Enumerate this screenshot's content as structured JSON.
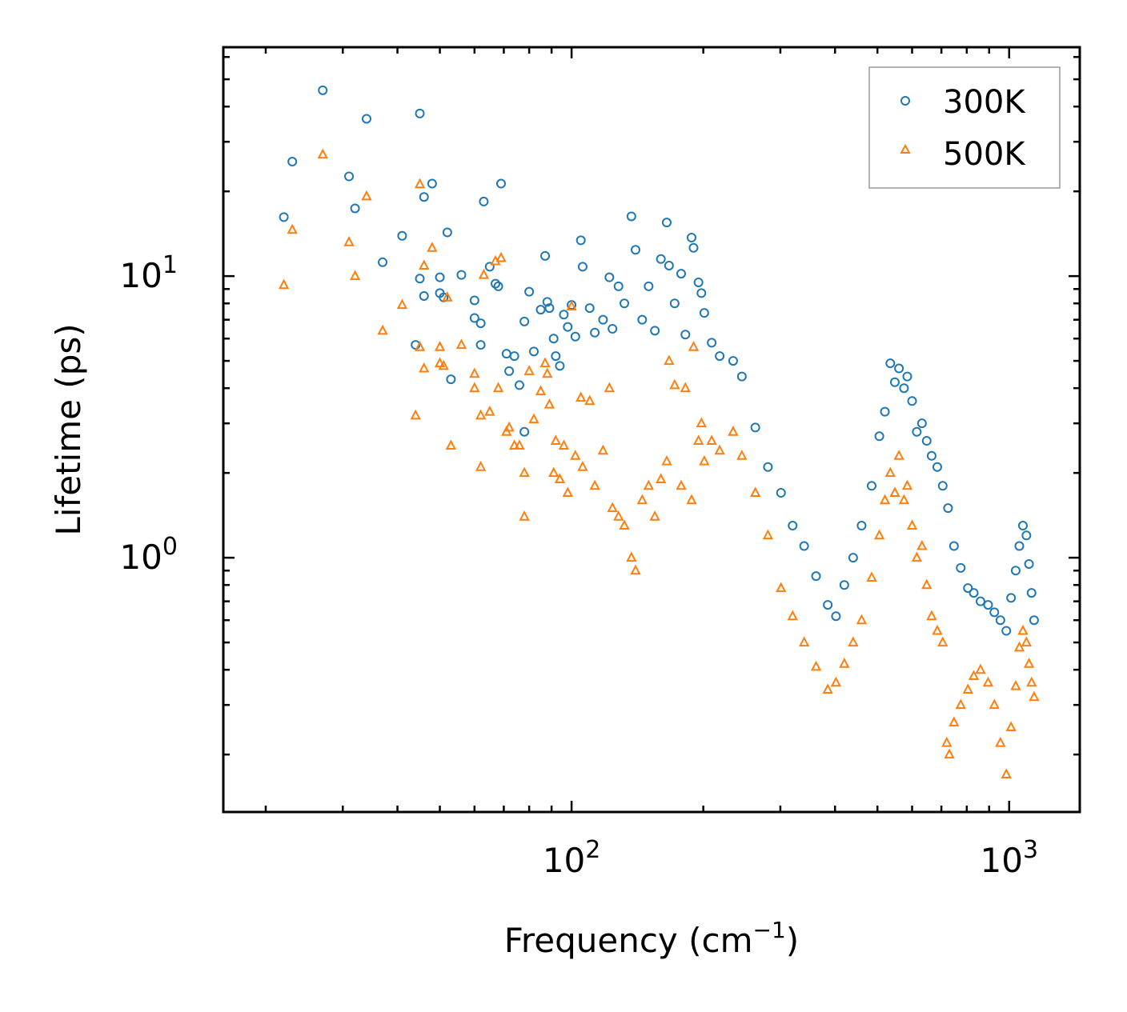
{
  "chart_data": {
    "type": "scatter",
    "xlabel": "Frequency (cm",
    "xlabel_sup": "−1",
    "xlabel_close": ")",
    "ylabel": "Lifetime (ps)",
    "xscale": "log",
    "yscale": "log",
    "xlim": [
      16,
      1450
    ],
    "ylim": [
      0.125,
      65
    ],
    "xticks": [
      {
        "base": "10",
        "exp": "2",
        "value": 100
      },
      {
        "base": "10",
        "exp": "3",
        "value": 1000
      }
    ],
    "yticks": [
      {
        "base": "10",
        "exp": "0",
        "value": 1
      },
      {
        "base": "10",
        "exp": "1",
        "value": 10
      }
    ],
    "legend": {
      "position": "top-right",
      "entries": [
        {
          "label": "300K",
          "marker": "circle",
          "color": "#1f77b4"
        },
        {
          "label": "500K",
          "marker": "triangle",
          "color": "#ff7f0e"
        }
      ]
    },
    "series": [
      {
        "name": "300K",
        "marker": "circle",
        "color": "#1f77b4",
        "points": [
          [
            22,
            16.2
          ],
          [
            23,
            25.5
          ],
          [
            27,
            45.7
          ],
          [
            31,
            22.6
          ],
          [
            32,
            17.4
          ],
          [
            34,
            36.2
          ],
          [
            37,
            11.2
          ],
          [
            41,
            13.9
          ],
          [
            44,
            5.7
          ],
          [
            45,
            37.8
          ],
          [
            45,
            9.8
          ],
          [
            46,
            8.5
          ],
          [
            46,
            19.1
          ],
          [
            48,
            21.3
          ],
          [
            50,
            9.9
          ],
          [
            50,
            8.7
          ],
          [
            51,
            8.4
          ],
          [
            52,
            14.3
          ],
          [
            53,
            4.3
          ],
          [
            56,
            10.1
          ],
          [
            60,
            8.2
          ],
          [
            60,
            7.1
          ],
          [
            62,
            6.8
          ],
          [
            62,
            5.7
          ],
          [
            63,
            18.4
          ],
          [
            65,
            10.8
          ],
          [
            67,
            9.4
          ],
          [
            68,
            9.2
          ],
          [
            69,
            21.3
          ],
          [
            71,
            5.3
          ],
          [
            72,
            4.6
          ],
          [
            74,
            5.2
          ],
          [
            76,
            4.1
          ],
          [
            78,
            6.9
          ],
          [
            78,
            2.8
          ],
          [
            80,
            8.8
          ],
          [
            82,
            5.4
          ],
          [
            85,
            7.6
          ],
          [
            87,
            11.8
          ],
          [
            88,
            8.1
          ],
          [
            89,
            7.7
          ],
          [
            91,
            6.0
          ],
          [
            92,
            5.2
          ],
          [
            94,
            4.8
          ],
          [
            96,
            7.3
          ],
          [
            98,
            6.6
          ],
          [
            100,
            7.9
          ],
          [
            102,
            6.1
          ],
          [
            105,
            13.4
          ],
          [
            106,
            10.8
          ],
          [
            110,
            7.7
          ],
          [
            113,
            6.3
          ],
          [
            118,
            7.0
          ],
          [
            122,
            9.9
          ],
          [
            124,
            6.5
          ],
          [
            128,
            9.2
          ],
          [
            132,
            8.0
          ],
          [
            137,
            16.3
          ],
          [
            140,
            12.4
          ],
          [
            145,
            7.0
          ],
          [
            150,
            9.2
          ],
          [
            155,
            6.4
          ],
          [
            160,
            11.5
          ],
          [
            165,
            15.5
          ],
          [
            167,
            10.9
          ],
          [
            172,
            8.0
          ],
          [
            178,
            10.2
          ],
          [
            182,
            6.2
          ],
          [
            188,
            13.7
          ],
          [
            190,
            12.6
          ],
          [
            195,
            9.5
          ],
          [
            198,
            8.7
          ],
          [
            201,
            7.4
          ],
          [
            209,
            5.8
          ],
          [
            218,
            5.2
          ],
          [
            234,
            5.0
          ],
          [
            245,
            4.4
          ],
          [
            263,
            2.9
          ],
          [
            281,
            2.1
          ],
          [
            301,
            1.7
          ],
          [
            320,
            1.3
          ],
          [
            340,
            1.1
          ],
          [
            362,
            0.86
          ],
          [
            385,
            0.68
          ],
          [
            402,
            0.62
          ],
          [
            420,
            0.8
          ],
          [
            440,
            1.0
          ],
          [
            460,
            1.3
          ],
          [
            485,
            1.8
          ],
          [
            505,
            2.7
          ],
          [
            520,
            3.3
          ],
          [
            535,
            4.9
          ],
          [
            548,
            4.2
          ],
          [
            560,
            4.7
          ],
          [
            575,
            4.0
          ],
          [
            585,
            4.4
          ],
          [
            600,
            3.6
          ],
          [
            615,
            2.8
          ],
          [
            632,
            3.0
          ],
          [
            648,
            2.6
          ],
          [
            665,
            2.3
          ],
          [
            685,
            2.1
          ],
          [
            705,
            1.8
          ],
          [
            725,
            1.5
          ],
          [
            748,
            1.1
          ],
          [
            775,
            0.92
          ],
          [
            805,
            0.78
          ],
          [
            830,
            0.75
          ],
          [
            860,
            0.7
          ],
          [
            895,
            0.68
          ],
          [
            925,
            0.64
          ],
          [
            955,
            0.6
          ],
          [
            985,
            0.55
          ],
          [
            1010,
            0.72
          ],
          [
            1035,
            0.9
          ],
          [
            1055,
            1.1
          ],
          [
            1075,
            1.3
          ],
          [
            1095,
            1.2
          ],
          [
            1110,
            0.95
          ],
          [
            1125,
            0.75
          ],
          [
            1140,
            0.6
          ]
        ]
      },
      {
        "name": "500K",
        "marker": "triangle",
        "color": "#ff7f0e",
        "points": [
          [
            22,
            9.3
          ],
          [
            23,
            14.6
          ],
          [
            27,
            27.0
          ],
          [
            31,
            13.2
          ],
          [
            32,
            10.0
          ],
          [
            34,
            19.2
          ],
          [
            37,
            6.4
          ],
          [
            41,
            7.9
          ],
          [
            44,
            3.2
          ],
          [
            45,
            21.2
          ],
          [
            45,
            5.6
          ],
          [
            46,
            4.7
          ],
          [
            46,
            10.9
          ],
          [
            48,
            12.6
          ],
          [
            50,
            5.6
          ],
          [
            50,
            4.9
          ],
          [
            51,
            4.8
          ],
          [
            52,
            8.4
          ],
          [
            53,
            2.5
          ],
          [
            56,
            5.7
          ],
          [
            60,
            4.5
          ],
          [
            60,
            4.0
          ],
          [
            62,
            3.2
          ],
          [
            62,
            2.1
          ],
          [
            63,
            10.1
          ],
          [
            65,
            3.3
          ],
          [
            67,
            11.3
          ],
          [
            68,
            4.0
          ],
          [
            69,
            11.6
          ],
          [
            71,
            2.8
          ],
          [
            72,
            2.9
          ],
          [
            74,
            2.5
          ],
          [
            76,
            2.5
          ],
          [
            78,
            2.0
          ],
          [
            78,
            1.4
          ],
          [
            80,
            4.6
          ],
          [
            82,
            3.1
          ],
          [
            85,
            3.9
          ],
          [
            87,
            4.9
          ],
          [
            88,
            4.5
          ],
          [
            89,
            3.5
          ],
          [
            91,
            2.0
          ],
          [
            92,
            2.6
          ],
          [
            94,
            1.9
          ],
          [
            96,
            2.5
          ],
          [
            98,
            1.7
          ],
          [
            100,
            7.8
          ],
          [
            102,
            2.3
          ],
          [
            105,
            3.7
          ],
          [
            106,
            2.1
          ],
          [
            110,
            3.6
          ],
          [
            113,
            1.8
          ],
          [
            118,
            2.4
          ],
          [
            122,
            4.0
          ],
          [
            124,
            1.5
          ],
          [
            128,
            1.4
          ],
          [
            132,
            1.3
          ],
          [
            137,
            1.0
          ],
          [
            140,
            0.9
          ],
          [
            145,
            1.6
          ],
          [
            150,
            1.8
          ],
          [
            155,
            1.4
          ],
          [
            160,
            1.9
          ],
          [
            165,
            2.2
          ],
          [
            167,
            5.0
          ],
          [
            172,
            4.1
          ],
          [
            178,
            1.8
          ],
          [
            182,
            4.0
          ],
          [
            188,
            1.6
          ],
          [
            190,
            5.6
          ],
          [
            195,
            2.6
          ],
          [
            198,
            3.0
          ],
          [
            201,
            2.2
          ],
          [
            209,
            2.6
          ],
          [
            218,
            2.4
          ],
          [
            234,
            2.8
          ],
          [
            245,
            2.3
          ],
          [
            263,
            1.7
          ],
          [
            281,
            1.2
          ],
          [
            301,
            0.78
          ],
          [
            320,
            0.62
          ],
          [
            340,
            0.5
          ],
          [
            362,
            0.41
          ],
          [
            385,
            0.34
          ],
          [
            402,
            0.36
          ],
          [
            420,
            0.42
          ],
          [
            440,
            0.5
          ],
          [
            460,
            0.6
          ],
          [
            485,
            0.85
          ],
          [
            505,
            1.2
          ],
          [
            520,
            1.6
          ],
          [
            535,
            2.0
          ],
          [
            548,
            1.7
          ],
          [
            560,
            2.3
          ],
          [
            575,
            1.6
          ],
          [
            585,
            1.8
          ],
          [
            600,
            1.3
          ],
          [
            615,
            1.0
          ],
          [
            632,
            1.1
          ],
          [
            648,
            0.8
          ],
          [
            665,
            0.62
          ],
          [
            685,
            0.55
          ],
          [
            705,
            0.5
          ],
          [
            720,
            0.22
          ],
          [
            730,
            0.2
          ],
          [
            748,
            0.26
          ],
          [
            775,
            0.3
          ],
          [
            805,
            0.34
          ],
          [
            830,
            0.38
          ],
          [
            860,
            0.4
          ],
          [
            895,
            0.36
          ],
          [
            925,
            0.3
          ],
          [
            955,
            0.22
          ],
          [
            985,
            0.17
          ],
          [
            1010,
            0.25
          ],
          [
            1035,
            0.35
          ],
          [
            1055,
            0.48
          ],
          [
            1075,
            0.55
          ],
          [
            1095,
            0.5
          ],
          [
            1110,
            0.42
          ],
          [
            1125,
            0.36
          ],
          [
            1140,
            0.32
          ]
        ]
      }
    ]
  }
}
